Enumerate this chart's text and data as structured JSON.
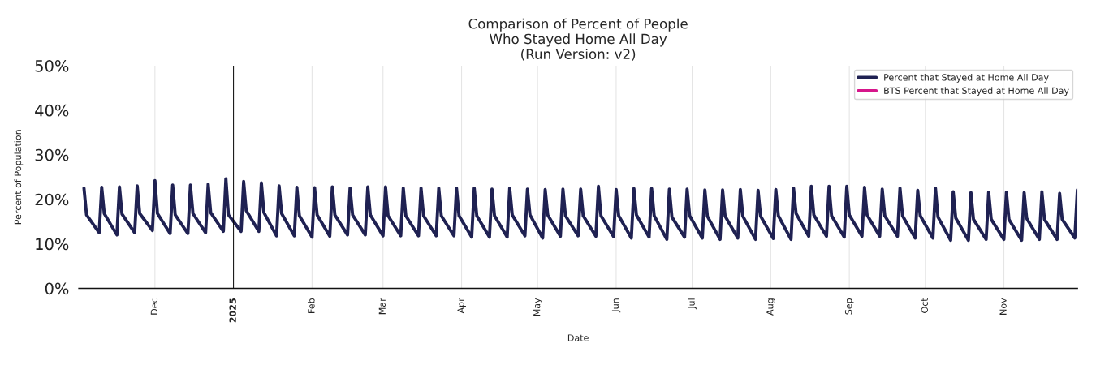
{
  "chart_data": {
    "type": "line",
    "title": "Comparison of Percent of People\nWho Stayed Home All Day\n(Run Version: v2)",
    "xlabel": "Date",
    "ylabel": "Percent of Population",
    "x": [
      "2024-11-03",
      "2024-11-04",
      "2024-11-09",
      "2024-11-10",
      "2024-11-11",
      "2024-11-16",
      "2024-11-17",
      "2024-11-18",
      "2024-11-23",
      "2024-11-24",
      "2024-11-25",
      "2024-11-30",
      "2024-12-01",
      "2024-12-02",
      "2024-12-07",
      "2024-12-08",
      "2024-12-09",
      "2024-12-14",
      "2024-12-15",
      "2024-12-16",
      "2024-12-21",
      "2024-12-22",
      "2024-12-23",
      "2024-12-28",
      "2024-12-29",
      "2024-12-30",
      "2025-01-04",
      "2025-01-05",
      "2025-01-06",
      "2025-01-11",
      "2025-01-12",
      "2025-01-13",
      "2025-01-18",
      "2025-01-19",
      "2025-01-20",
      "2025-01-25",
      "2025-01-26",
      "2025-01-27",
      "2025-02-01",
      "2025-02-02",
      "2025-02-03",
      "2025-02-08",
      "2025-02-09",
      "2025-02-10",
      "2025-02-15",
      "2025-02-16",
      "2025-02-17",
      "2025-02-22",
      "2025-02-23",
      "2025-02-24",
      "2025-03-01",
      "2025-03-02",
      "2025-03-03",
      "2025-03-08",
      "2025-03-09",
      "2025-03-10",
      "2025-03-15",
      "2025-03-16",
      "2025-03-17",
      "2025-03-22",
      "2025-03-23",
      "2025-03-24",
      "2025-03-29",
      "2025-03-30",
      "2025-03-31",
      "2025-04-05",
      "2025-04-06",
      "2025-04-07",
      "2025-04-12",
      "2025-04-13",
      "2025-04-14",
      "2025-04-19",
      "2025-04-20",
      "2025-04-21",
      "2025-04-26",
      "2025-04-27",
      "2025-04-28",
      "2025-05-03",
      "2025-05-04",
      "2025-05-05",
      "2025-05-10",
      "2025-05-11",
      "2025-05-12",
      "2025-05-17",
      "2025-05-18",
      "2025-05-19",
      "2025-05-24",
      "2025-05-25",
      "2025-05-26",
      "2025-05-31",
      "2025-06-01",
      "2025-06-02",
      "2025-06-07",
      "2025-06-08",
      "2025-06-09",
      "2025-06-14",
      "2025-06-15",
      "2025-06-16",
      "2025-06-21",
      "2025-06-22",
      "2025-06-23",
      "2025-06-28",
      "2025-06-29",
      "2025-06-30",
      "2025-07-05",
      "2025-07-06",
      "2025-07-07",
      "2025-07-12",
      "2025-07-13",
      "2025-07-14",
      "2025-07-19",
      "2025-07-20",
      "2025-07-21",
      "2025-07-26",
      "2025-07-27",
      "2025-07-28",
      "2025-08-02",
      "2025-08-03",
      "2025-08-04",
      "2025-08-09",
      "2025-08-10",
      "2025-08-11",
      "2025-08-16",
      "2025-08-17",
      "2025-08-18",
      "2025-08-23",
      "2025-08-24",
      "2025-08-25",
      "2025-08-30",
      "2025-08-31",
      "2025-09-01",
      "2025-09-06",
      "2025-09-07",
      "2025-09-08",
      "2025-09-13",
      "2025-09-14",
      "2025-09-15",
      "2025-09-20",
      "2025-09-21",
      "2025-09-22",
      "2025-09-27",
      "2025-09-28",
      "2025-09-29",
      "2025-10-04",
      "2025-10-05",
      "2025-10-06",
      "2025-10-11",
      "2025-10-12",
      "2025-10-13",
      "2025-10-18",
      "2025-10-19",
      "2025-10-20",
      "2025-10-25",
      "2025-10-26",
      "2025-10-27",
      "2025-11-01",
      "2025-11-02",
      "2025-11-03",
      "2025-11-08",
      "2025-11-09",
      "2025-11-10",
      "2025-11-15",
      "2025-11-16",
      "2025-11-17",
      "2025-11-22",
      "2025-11-23",
      "2025-11-24",
      "2025-11-29",
      "2025-11-30"
    ],
    "series": [
      {
        "name": "Percent that Stayed at Home All Day",
        "color": "#1f2152",
        "values": [
          22.5,
          16.5,
          12.5,
          22.7,
          16.8,
          12.0,
          22.8,
          16.7,
          12.5,
          23.0,
          16.8,
          13.0,
          24.2,
          16.8,
          12.3,
          23.2,
          16.5,
          12.3,
          23.2,
          16.8,
          12.5,
          23.4,
          17.0,
          12.8,
          24.6,
          16.5,
          12.8,
          24.0,
          17.5,
          12.8,
          23.7,
          17.0,
          11.8,
          23.0,
          16.8,
          11.8,
          22.7,
          16.3,
          11.5,
          22.6,
          16.5,
          11.7,
          22.8,
          16.5,
          12.0,
          22.5,
          16.5,
          12.0,
          22.8,
          16.5,
          11.8,
          22.8,
          16.3,
          11.8,
          22.5,
          16.3,
          11.8,
          22.5,
          16.3,
          11.8,
          22.5,
          16.3,
          11.8,
          22.5,
          16.3,
          11.5,
          22.5,
          16.3,
          11.5,
          22.3,
          16.3,
          11.5,
          22.5,
          16.5,
          11.8,
          22.3,
          16.5,
          11.3,
          22.2,
          16.5,
          11.7,
          22.3,
          16.3,
          11.8,
          22.3,
          16.3,
          11.7,
          22.9,
          16.3,
          11.6,
          22.2,
          16.3,
          11.3,
          22.4,
          16.5,
          11.5,
          22.4,
          16.3,
          11.0,
          22.3,
          16.0,
          11.5,
          22.3,
          16.3,
          11.3,
          22.1,
          16.2,
          11.0,
          22.1,
          16.2,
          11.3,
          22.2,
          16.2,
          11.0,
          22.0,
          16.2,
          11.2,
          22.2,
          16.3,
          11.0,
          22.5,
          16.8,
          11.7,
          22.9,
          16.5,
          11.7,
          22.9,
          16.3,
          11.5,
          22.9,
          16.5,
          11.7,
          22.7,
          16.5,
          11.7,
          22.3,
          16.3,
          11.7,
          22.5,
          16.3,
          11.3,
          22.0,
          16.3,
          11.3,
          22.5,
          16.0,
          10.8,
          21.7,
          15.8,
          10.8,
          21.5,
          15.5,
          11.0,
          21.6,
          15.5,
          11.0,
          21.6,
          15.5,
          10.8,
          21.5,
          15.7,
          11.0,
          21.7,
          15.5,
          11.0,
          21.3,
          15.5,
          11.3,
          22.1
        ]
      },
      {
        "name": "BTS Percent that Stayed at Home All Day",
        "color": "#d6168b",
        "values": [
          null,
          null,
          null,
          null,
          null,
          null,
          null,
          null,
          null,
          null,
          null,
          null,
          null,
          null,
          null,
          null,
          null,
          null,
          null,
          null,
          null,
          null,
          null,
          null,
          null,
          null,
          null,
          null,
          null,
          null,
          null,
          null,
          null,
          null,
          null,
          null,
          null,
          null,
          null,
          null,
          null,
          null,
          null,
          null,
          null,
          null,
          null,
          null,
          null,
          null,
          null,
          null,
          null,
          null,
          null,
          null,
          null,
          null,
          null,
          null,
          null,
          null,
          null,
          null,
          null,
          null,
          null,
          null,
          null,
          null,
          null,
          null,
          null,
          null,
          null,
          null,
          null,
          null,
          null,
          null,
          null,
          null,
          null,
          null,
          null,
          null,
          null,
          null,
          null,
          null,
          null,
          null,
          null,
          null,
          null,
          null,
          null,
          null,
          null,
          null,
          null,
          null,
          null,
          null,
          null,
          null,
          null,
          null,
          null,
          null,
          null,
          null,
          null,
          null,
          null,
          null,
          null,
          null,
          null,
          null,
          null,
          null,
          null,
          null,
          null,
          null,
          null,
          null,
          null,
          null,
          null,
          null,
          null,
          null,
          null,
          null,
          null,
          null,
          null,
          null,
          null,
          null,
          null,
          null,
          null,
          null,
          null,
          null,
          null,
          null,
          null,
          null,
          null,
          null,
          null,
          null,
          null,
          null,
          null,
          null,
          null,
          null,
          null,
          null,
          null,
          null,
          null,
          null,
          null
        ]
      }
    ],
    "xlim": [
      "2024-11-01",
      "2025-11-30"
    ],
    "xticks": [
      {
        "value": "2024-12-01",
        "label": "Dec"
      },
      {
        "value": "2025-01-01",
        "label": "2025"
      },
      {
        "value": "2025-02-01",
        "label": "Feb"
      },
      {
        "value": "2025-03-01",
        "label": "Mar"
      },
      {
        "value": "2025-04-01",
        "label": "Apr"
      },
      {
        "value": "2025-05-01",
        "label": "May"
      },
      {
        "value": "2025-06-01",
        "label": "Jun"
      },
      {
        "value": "2025-07-01",
        "label": "Jul"
      },
      {
        "value": "2025-08-01",
        "label": "Aug"
      },
      {
        "value": "2025-09-01",
        "label": "Sep"
      },
      {
        "value": "2025-10-01",
        "label": "Oct"
      },
      {
        "value": "2025-11-01",
        "label": "Nov"
      }
    ],
    "ylim": [
      0,
      50
    ],
    "yticks": [
      {
        "value": 0,
        "label": "0%"
      },
      {
        "value": 10,
        "label": "10%"
      },
      {
        "value": 20,
        "label": "20%"
      },
      {
        "value": 30,
        "label": "30%"
      },
      {
        "value": 40,
        "label": "40%"
      },
      {
        "value": 50,
        "label": "50%"
      }
    ],
    "ref_lines": [
      {
        "axis": "x",
        "value": "2025-01-01",
        "color": "#000000"
      }
    ],
    "grid": "x",
    "legend": "top right",
    "marker": "none",
    "line_style": "solid"
  }
}
